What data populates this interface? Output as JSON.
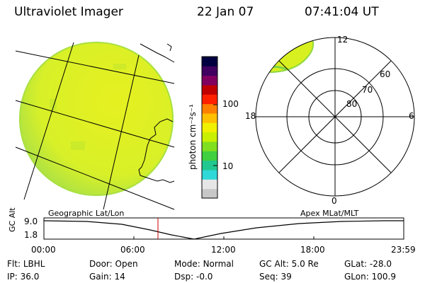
{
  "header": {
    "instrument": "Ultraviolet Imager",
    "date": "22 Jan 07",
    "time": "07:41:04 UT"
  },
  "colorbar": {
    "label": "photon cm⁻²s⁻¹",
    "ticks": [
      {
        "value": 100,
        "label": "100"
      },
      {
        "value": 10,
        "label": "10"
      }
    ],
    "colors": [
      "#c8c8c8",
      "#e6e6e6",
      "#30d8d8",
      "#20c890",
      "#40d040",
      "#80e020",
      "#c8f000",
      "#f0f000",
      "#ffc000",
      "#ff8000",
      "#ff2000",
      "#c00000",
      "#800060",
      "#400060",
      "#000040"
    ]
  },
  "geo_panel": {
    "label": "Geographic Lat/Lon",
    "colors": {
      "disk": "#e0f02a",
      "limb": "#a8e040"
    }
  },
  "polar_panel": {
    "label": "Apex MLat/MLT",
    "lat_labels": [
      "60",
      "70",
      "80"
    ],
    "mlt_labels": {
      "top": "12",
      "right": "6",
      "bottom": "0",
      "left": "18"
    }
  },
  "timeline": {
    "ylabel": "GC Alt",
    "ytick_top": "9.0",
    "ytick_bottom": "1.8",
    "xticks": [
      "00:00",
      "06:00",
      "12:00",
      "18:00",
      "23:59"
    ],
    "marker_color": "#cc0000"
  },
  "status": {
    "flt": {
      "label": "Flt:",
      "value": "LBHL"
    },
    "ip": {
      "label": "IP:",
      "value": "36.0"
    },
    "door": {
      "label": "Door:",
      "value": "Open"
    },
    "gain": {
      "label": "Gain:",
      "value": "14"
    },
    "mode": {
      "label": "Mode:",
      "value": "Normal"
    },
    "dsp": {
      "label": "Dsp:",
      "value": "-0.0"
    },
    "gcalt": {
      "label": "GC Alt:",
      "value": "5.0 Re"
    },
    "seq": {
      "label": "Seq:",
      "value": "39"
    },
    "glat": {
      "label": "GLat:",
      "value": "-28.0"
    },
    "glon": {
      "label": "GLon:",
      "value": "100.9"
    }
  }
}
